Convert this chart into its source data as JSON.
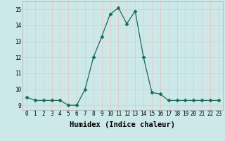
{
  "x": [
    0,
    1,
    2,
    3,
    4,
    5,
    6,
    7,
    8,
    9,
    10,
    11,
    12,
    13,
    14,
    15,
    16,
    17,
    18,
    19,
    20,
    21,
    22,
    23
  ],
  "y": [
    9.5,
    9.3,
    9.3,
    9.3,
    9.3,
    9.0,
    9.0,
    10.0,
    12.0,
    13.3,
    14.7,
    15.1,
    14.1,
    14.9,
    12.0,
    9.8,
    9.7,
    9.3,
    9.3,
    9.3,
    9.3,
    9.3,
    9.3,
    9.3
  ],
  "xlabel": "Humidex (Indice chaleur)",
  "xlim": [
    -0.5,
    23.5
  ],
  "ylim": [
    8.7,
    15.5
  ],
  "yticks": [
    9,
    10,
    11,
    12,
    13,
    14,
    15
  ],
  "xticks": [
    0,
    1,
    2,
    3,
    4,
    5,
    6,
    7,
    8,
    9,
    10,
    11,
    12,
    13,
    14,
    15,
    16,
    17,
    18,
    19,
    20,
    21,
    22,
    23
  ],
  "line_color": "#1a6b5a",
  "marker": "D",
  "bg_color": "#cce8e8",
  "grid_color": "#e8c8c8",
  "tick_fontsize": 5.5,
  "label_fontsize": 7.5
}
